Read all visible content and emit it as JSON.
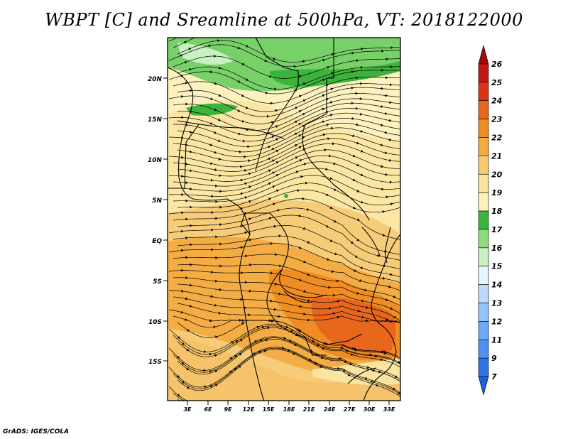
{
  "title": "WBPT [C] and Sreamline at 500hPa, VT: 2018122000",
  "credit": "GrADS: IGES/COLA",
  "map": {
    "lat_labels": [
      "20N",
      "15N",
      "10N",
      "5N",
      "EQ",
      "5S",
      "10S",
      "15S"
    ],
    "lon_labels": [
      "3E",
      "6E",
      "9E",
      "12E",
      "15E",
      "18E",
      "21E",
      "24E",
      "27E",
      "30E",
      "33E"
    ]
  },
  "colorbar": {
    "levels": [
      "7",
      "9",
      "11",
      "12",
      "13",
      "14",
      "15",
      "16",
      "17",
      "18",
      "19",
      "20",
      "21",
      "22",
      "23",
      "24",
      "25",
      "26"
    ],
    "colors": [
      "#1f5fd6",
      "#2d75e6",
      "#4f91f0",
      "#6eaaf5",
      "#93c4f8",
      "#b9dcfb",
      "#e6f6ff",
      "#c8f0c0",
      "#8fdc7e",
      "#3cb43c",
      "#fdf3b8",
      "#f9e49a",
      "#f7ca70",
      "#f4ab3e",
      "#ef8d1e",
      "#e8671a",
      "#d93416",
      "#c01812",
      "#a00c0c"
    ]
  }
}
